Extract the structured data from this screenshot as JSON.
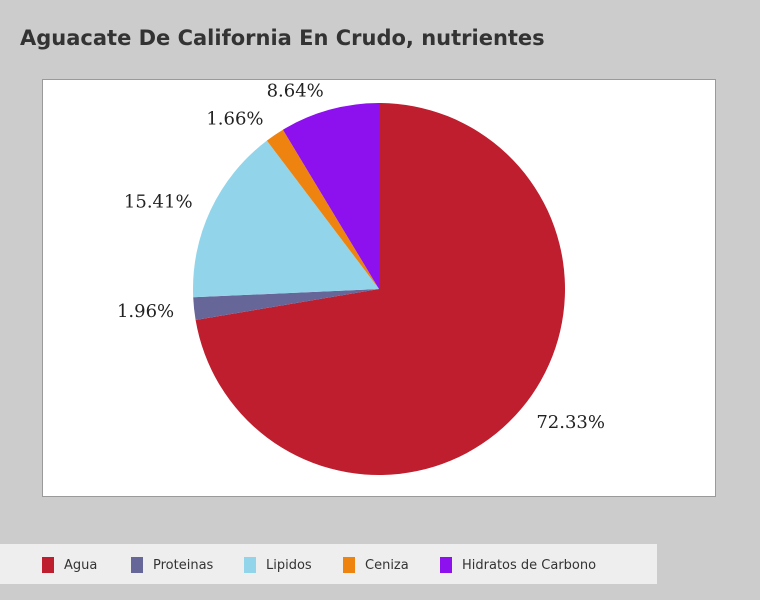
{
  "chart_data": {
    "type": "pie",
    "title": "Aguacate De California En Crudo, nutrientes",
    "categories": [
      "Agua",
      "Proteinas",
      "Lipidos",
      "Ceniza",
      "Hidratos de Carbono"
    ],
    "values": [
      72.33,
      1.96,
      15.41,
      1.66,
      8.64
    ],
    "data_labels": [
      "72.33%",
      "1.96%",
      "15.41%",
      "1.66%",
      "8.64%"
    ],
    "colors": [
      "#be1e2d",
      "#666699",
      "#92d5ea",
      "#ee8310",
      "#8d10ee"
    ],
    "legend_position": "bottom"
  }
}
